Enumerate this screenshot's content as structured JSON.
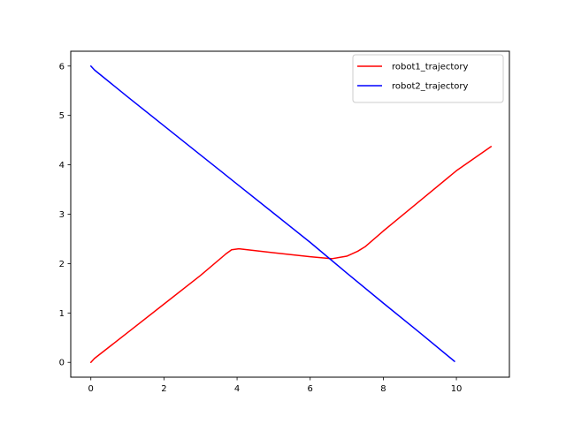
{
  "chart_data": {
    "type": "line",
    "title": "",
    "xlabel": "",
    "ylabel": "",
    "xlim": [
      -0.55,
      11.45
    ],
    "ylim": [
      -0.3,
      6.3
    ],
    "xticks": [
      0,
      2,
      4,
      6,
      8,
      10
    ],
    "yticks": [
      0,
      1,
      2,
      3,
      4,
      5,
      6
    ],
    "grid": false,
    "legend_position": "top-right",
    "series": [
      {
        "name": "robot1_trajectory",
        "color": "#ff0000",
        "points": [
          [
            0.0,
            0.0
          ],
          [
            0.1,
            0.08
          ],
          [
            1.0,
            0.6
          ],
          [
            2.0,
            1.18
          ],
          [
            3.0,
            1.76
          ],
          [
            3.7,
            2.2
          ],
          [
            3.85,
            2.28
          ],
          [
            4.05,
            2.3
          ],
          [
            5.0,
            2.22
          ],
          [
            6.0,
            2.14
          ],
          [
            6.6,
            2.1
          ],
          [
            7.0,
            2.15
          ],
          [
            7.3,
            2.25
          ],
          [
            7.5,
            2.34
          ],
          [
            8.0,
            2.66
          ],
          [
            9.0,
            3.27
          ],
          [
            10.0,
            3.88
          ],
          [
            10.95,
            4.37
          ]
        ]
      },
      {
        "name": "robot2_trajectory",
        "color": "#0000ff",
        "points": [
          [
            0.0,
            6.0
          ],
          [
            0.1,
            5.92
          ],
          [
            1.0,
            5.38
          ],
          [
            2.0,
            4.79
          ],
          [
            3.0,
            4.2
          ],
          [
            4.0,
            3.61
          ],
          [
            5.0,
            3.02
          ],
          [
            6.0,
            2.43
          ],
          [
            7.0,
            1.81
          ],
          [
            8.0,
            1.2
          ],
          [
            9.0,
            0.6
          ],
          [
            9.95,
            0.02
          ]
        ]
      }
    ]
  }
}
